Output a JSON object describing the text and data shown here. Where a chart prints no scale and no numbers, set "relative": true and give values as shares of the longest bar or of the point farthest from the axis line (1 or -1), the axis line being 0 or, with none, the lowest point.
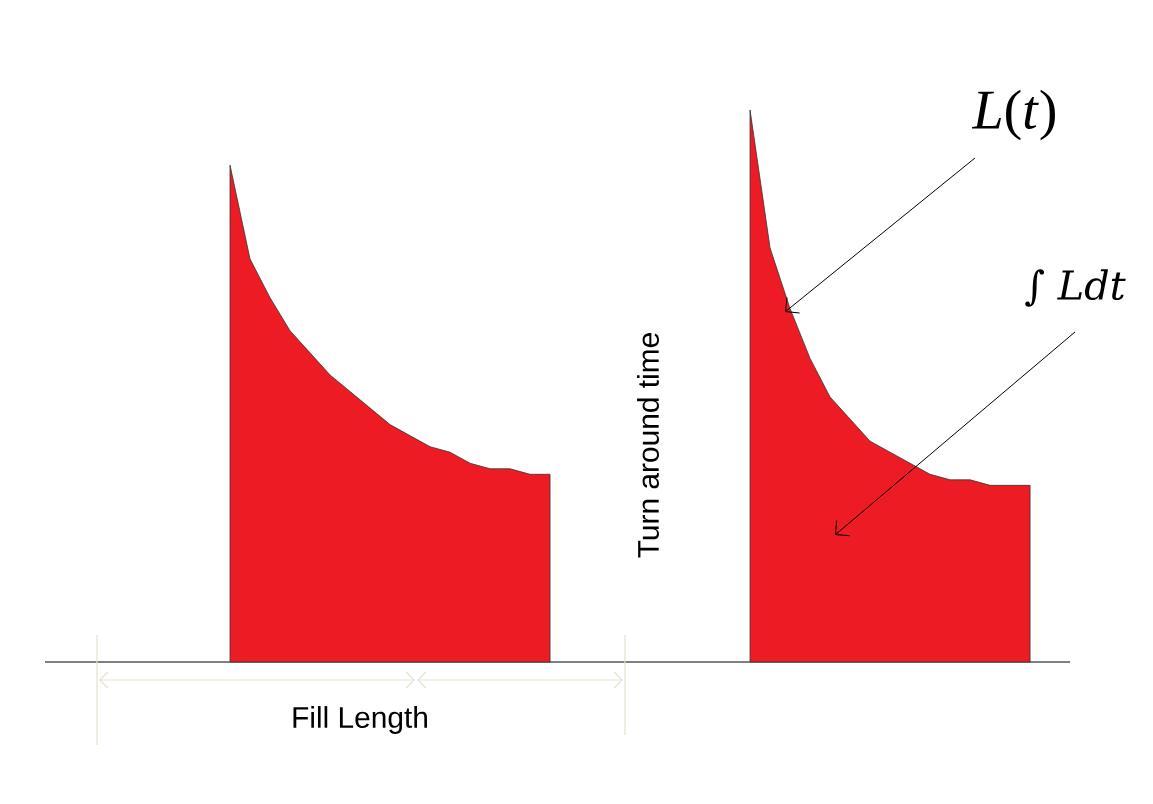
{
  "chart_data": {
    "type": "area",
    "relative": true,
    "categories": [
      null,
      null,
      null,
      null,
      null,
      null,
      null,
      null,
      null,
      null,
      null,
      null,
      null,
      null,
      null,
      null,
      null,
      null,
      null,
      null,
      null,
      null,
      null,
      null,
      null,
      null,
      null,
      null,
      null,
      null,
      null,
      null,
      null,
      null,
      null,
      null,
      null,
      null,
      null,
      null,
      null,
      null,
      null,
      null,
      null,
      null,
      null,
      null,
      null,
      null,
      null,
      null
    ],
    "series": [
      {
        "color": "#ed1c24",
        "values": [
          null,
          null,
          null,
          null,
          null,
          null,
          null,
          null,
          null,
          0.9,
          0.73,
          0.66,
          0.6,
          0.56,
          0.52,
          0.49,
          0.46,
          0.43,
          0.41,
          0.39,
          0.38,
          0.36,
          0.35,
          0.35,
          0.34,
          0.34,
          null,
          null,
          null,
          null,
          null,
          null,
          null,
          null,
          null,
          null,
          null,
          null,
          null,
          null,
          null,
          null,
          null,
          null,
          null,
          null,
          null,
          null,
          null,
          null,
          null,
          null
        ]
      },
      {
        "color": "#ed1c24",
        "values": [
          null,
          null,
          null,
          null,
          null,
          null,
          null,
          null,
          null,
          null,
          null,
          null,
          null,
          null,
          null,
          null,
          null,
          null,
          null,
          null,
          null,
          null,
          null,
          null,
          null,
          null,
          null,
          null,
          null,
          null,
          null,
          null,
          null,
          null,
          null,
          1.0,
          0.75,
          0.64,
          0.55,
          0.48,
          0.44,
          0.4,
          0.38,
          0.36,
          0.34,
          0.33,
          0.33,
          0.32,
          0.32,
          0.32,
          null,
          null
        ]
      }
    ],
    "annotations": [
      "*L*(*t*)",
      "∫ *Ldt*",
      "Turn around time",
      "Fill Length"
    ]
  }
}
